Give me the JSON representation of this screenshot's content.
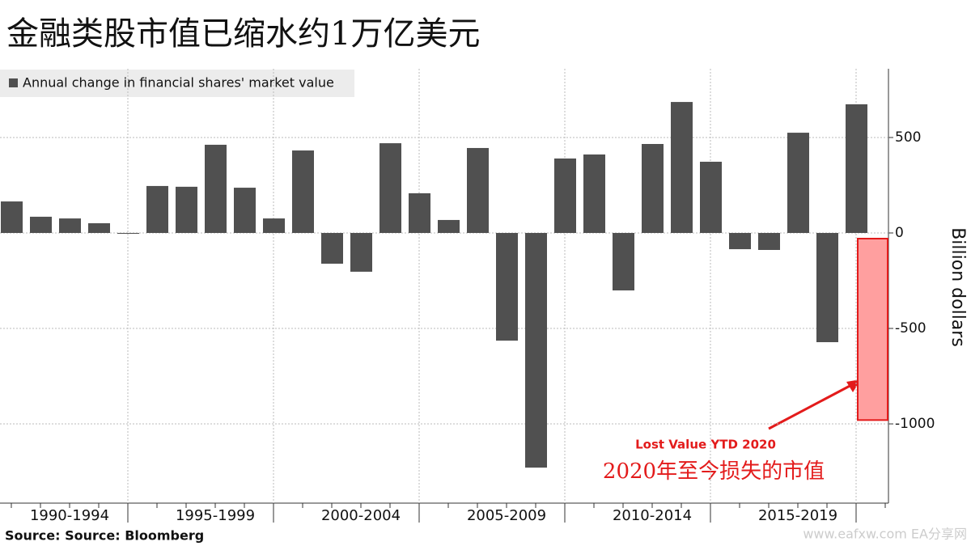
{
  "chart_data": {
    "type": "bar",
    "title": "金融类股市值已缩水约1万亿美元",
    "y_label": "Billion dollars",
    "source": "Source: Source: Bloomberg",
    "watermark": "www.eafxw.com   EA分享网",
    "annotations": [
      {
        "text": "Lost Value YTD 2020",
        "color": "#e31b1b"
      },
      {
        "text": "2020年至今损失的市值",
        "color": "#e31b1b"
      }
    ],
    "categories": [
      null,
      null,
      "1990-1994",
      null,
      null,
      null,
      null,
      "1995-1999",
      null,
      null,
      null,
      null,
      "2000-2004",
      null,
      null,
      null,
      null,
      "2005-2009",
      null,
      null,
      null,
      null,
      "2010-2014",
      null,
      null,
      null,
      null,
      "2015-2019",
      null,
      null,
      null
    ],
    "series": [
      {
        "name": "Annual change in financial shares' market value",
        "color": "#505050",
        "values": [
          165,
          85,
          76,
          51,
          -3,
          246,
          242,
          462,
          237,
          76,
          432,
          -161,
          -203,
          470,
          208,
          68,
          445,
          -564,
          -1229,
          390,
          411,
          -301,
          466,
          686,
          373,
          -85,
          -89,
          525,
          -572,
          674,
          -980
        ],
        "colors": [
          "#505050",
          "#505050",
          "#505050",
          "#505050",
          "#505050",
          "#505050",
          "#505050",
          "#505050",
          "#505050",
          "#505050",
          "#505050",
          "#505050",
          "#505050",
          "#505050",
          "#505050",
          "#505050",
          "#505050",
          "#505050",
          "#505050",
          "#505050",
          "#505050",
          "#505050",
          "#505050",
          "#505050",
          "#505050",
          "#505050",
          "#505050",
          "#505050",
          "#505050",
          "#505050",
          "#ff9f9f"
        ]
      }
    ],
    "ylim": [
      -1415,
      860
    ],
    "yticks": [
      -1000,
      -500,
      0,
      500
    ],
    "grid": true,
    "legend": "upper left"
  }
}
